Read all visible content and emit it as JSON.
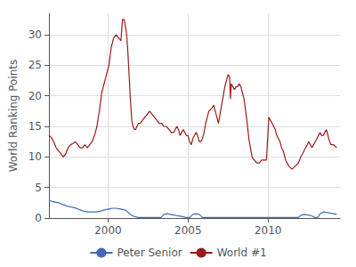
{
  "chart_data": {
    "type": "line",
    "ylabel": "World Ranking Points",
    "xlim": [
      1996.3,
      2014.5
    ],
    "xticks": [
      2000,
      2005,
      2010
    ],
    "ylim": [
      0,
      33.5
    ],
    "yticks": [
      0,
      5,
      10,
      15,
      20,
      25,
      30
    ],
    "grid": true,
    "legend": "bottom",
    "series": [
      {
        "name": "Peter Senior",
        "color": "#4169b8",
        "x": [
          1996.3,
          1996.5,
          1996.7,
          1996.9,
          1997.1,
          1997.3,
          1997.5,
          1997.7,
          1997.9,
          1998.1,
          1998.3,
          1998.5,
          1998.7,
          1998.9,
          1999.1,
          1999.3,
          1999.5,
          1999.7,
          1999.9,
          2000.1,
          2000.3,
          2000.5,
          2000.7,
          2000.9,
          2001.1,
          2001.3,
          2001.5,
          2001.7,
          2001.9,
          2002.1,
          2002.3,
          2002.5,
          2002.7,
          2002.9,
          2003.1,
          2003.3,
          2003.5,
          2003.7,
          2003.9,
          2004.1,
          2004.3,
          2004.5,
          2004.7,
          2004.9,
          2005.1,
          2005.3,
          2005.5,
          2005.7,
          2005.9,
          2006.1,
          2006.3,
          2006.5,
          2006.7,
          2006.9,
          2007.1,
          2007.3,
          2007.5,
          2007.7,
          2007.9,
          2008.1,
          2008.3,
          2008.5,
          2008.7,
          2008.9,
          2009.1,
          2009.3,
          2009.5,
          2009.7,
          2009.9,
          2010.1,
          2010.3,
          2010.5,
          2010.7,
          2010.9,
          2011.1,
          2011.3,
          2011.5,
          2011.7,
          2011.9,
          2012.1,
          2012.3,
          2012.5,
          2012.7,
          2012.9,
          2013.1,
          2013.3,
          2013.5,
          2013.7,
          2013.9,
          2014.1,
          2014.3
        ],
        "values": [
          2.9,
          2.7,
          2.6,
          2.5,
          2.3,
          2.1,
          1.9,
          1.8,
          1.7,
          1.5,
          1.3,
          1.1,
          1.0,
          1.0,
          1.0,
          1.0,
          1.1,
          1.3,
          1.4,
          1.5,
          1.6,
          1.6,
          1.5,
          1.4,
          1.3,
          0.8,
          0.4,
          0.2,
          0.1,
          0.1,
          0.1,
          0.1,
          0.1,
          0.1,
          0.1,
          0.1,
          0.6,
          0.7,
          0.6,
          0.5,
          0.4,
          0.3,
          0.2,
          0.1,
          0.1,
          0.6,
          0.7,
          0.6,
          0.1,
          0.1,
          0.1,
          0.1,
          0.1,
          0.1,
          0.1,
          0.1,
          0.1,
          0.1,
          0.1,
          0.1,
          0.1,
          0.1,
          0.1,
          0.1,
          0.1,
          0.1,
          0.1,
          0.1,
          0.1,
          0.1,
          0.1,
          0.1,
          0.1,
          0.1,
          0.1,
          0.1,
          0.1,
          0.1,
          0.1,
          0.5,
          0.6,
          0.5,
          0.4,
          0.1,
          0.1,
          0.8,
          1.0,
          0.9,
          0.8,
          0.7,
          0.6
        ]
      },
      {
        "name": "World #1",
        "color": "#9b1b1b",
        "x": [
          1996.3,
          1996.45,
          1996.6,
          1996.75,
          1996.9,
          1997.05,
          1997.2,
          1997.35,
          1997.5,
          1997.65,
          1997.8,
          1997.95,
          1998.1,
          1998.25,
          1998.4,
          1998.55,
          1998.7,
          1998.85,
          1999.0,
          1999.15,
          1999.3,
          1999.45,
          1999.6,
          1999.75,
          1999.9,
          2000.05,
          2000.2,
          2000.35,
          2000.5,
          2000.65,
          2000.8,
          2000.9,
          2001.0,
          2001.08,
          2001.16,
          2001.24,
          2001.32,
          2001.4,
          2001.48,
          2001.56,
          2001.64,
          2001.72,
          2001.8,
          2001.9,
          2002.0,
          2002.15,
          2002.3,
          2002.45,
          2002.6,
          2002.75,
          2002.9,
          2003.05,
          2003.2,
          2003.35,
          2003.5,
          2003.65,
          2003.8,
          2003.95,
          2004.1,
          2004.2,
          2004.3,
          2004.4,
          2004.5,
          2004.6,
          2004.7,
          2004.8,
          2004.9,
          2005.0,
          2005.1,
          2005.2,
          2005.3,
          2005.4,
          2005.5,
          2005.6,
          2005.7,
          2005.8,
          2005.9,
          2006.0,
          2006.1,
          2006.2,
          2006.3,
          2006.5,
          2006.6,
          2006.7,
          2006.8,
          2006.9,
          2007.0,
          2007.1,
          2007.2,
          2007.3,
          2007.4,
          2007.5,
          2007.6,
          2007.65,
          2007.7,
          2007.8,
          2007.9,
          2008.0,
          2008.1,
          2008.2,
          2008.3,
          2008.4,
          2008.5,
          2008.6,
          2008.7,
          2008.8,
          2008.9,
          2009.0,
          2009.15,
          2009.3,
          2009.45,
          2009.6,
          2009.75,
          2009.9,
          2010.05,
          2010.15,
          2010.25,
          2010.35,
          2010.45,
          2010.55,
          2010.65,
          2010.75,
          2010.85,
          2010.95,
          2011.1,
          2011.3,
          2011.5,
          2011.7,
          2011.9,
          2012.05,
          2012.15,
          2012.25,
          2012.35,
          2012.45,
          2012.55,
          2012.65,
          2012.75,
          2012.85,
          2012.95,
          2013.05,
          2013.15,
          2013.25,
          2013.35,
          2013.45,
          2013.55,
          2013.65,
          2013.75,
          2013.85,
          2013.95,
          2014.1,
          2014.3
        ],
        "values": [
          13.5,
          13.2,
          12.5,
          11.5,
          11.0,
          10.5,
          10.0,
          10.5,
          11.5,
          12.0,
          12.2,
          12.5,
          12.0,
          11.5,
          11.5,
          12.0,
          11.5,
          12.0,
          12.5,
          13.5,
          15.0,
          17.5,
          20.5,
          22.0,
          23.5,
          25.0,
          28.0,
          29.5,
          30.0,
          29.5,
          29.0,
          32.5,
          32.5,
          31.5,
          30.0,
          27.0,
          23.0,
          19.0,
          16.0,
          15.0,
          14.5,
          14.5,
          15.0,
          15.5,
          15.5,
          16.0,
          16.5,
          17.0,
          17.5,
          17.0,
          16.5,
          16.0,
          15.5,
          15.5,
          15.0,
          15.0,
          14.5,
          14.0,
          14.0,
          14.5,
          15.0,
          14.5,
          13.5,
          14.0,
          14.5,
          14.0,
          13.5,
          13.5,
          12.5,
          12.0,
          13.0,
          13.5,
          14.0,
          13.5,
          12.5,
          12.5,
          13.0,
          14.0,
          15.5,
          16.5,
          17.5,
          18.0,
          18.5,
          17.5,
          16.5,
          15.5,
          17.0,
          18.5,
          20.0,
          21.5,
          22.5,
          23.5,
          23.0,
          19.5,
          22.0,
          21.5,
          21.0,
          21.5,
          21.5,
          22.0,
          21.5,
          20.5,
          19.5,
          17.5,
          15.5,
          13.0,
          11.5,
          10.0,
          9.5,
          9.0,
          9.0,
          9.5,
          9.5,
          9.5,
          16.5,
          16.0,
          15.5,
          15.0,
          14.5,
          13.5,
          13.0,
          12.5,
          11.5,
          11.0,
          9.5,
          8.5,
          8.0,
          8.5,
          9.0,
          10.0,
          10.5,
          11.0,
          11.5,
          12.0,
          12.5,
          12.0,
          11.5,
          12.0,
          12.5,
          13.0,
          13.5,
          14.0,
          13.5,
          13.5,
          14.0,
          14.5,
          13.5,
          12.5,
          12.0,
          12.0,
          11.5
        ]
      }
    ]
  }
}
